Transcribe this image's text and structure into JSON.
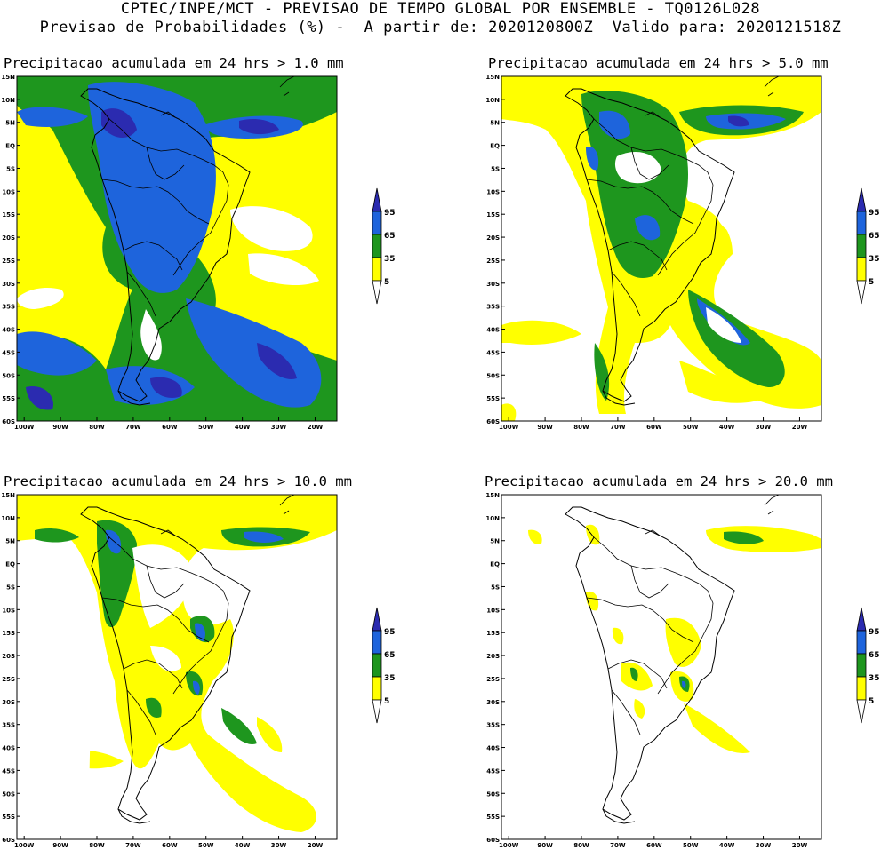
{
  "header": {
    "line1": "CPTEC/INPE/MCT - PREVISAO DE TEMPO GLOBAL POR ENSEMBLE - TQ0126L028",
    "line2": "Previsao de Probabilidades (%) -  A partir de: 2020120800Z  Valido para: 2020121518Z"
  },
  "colors": {
    "yellow": "#ffff00",
    "green": "#1e961e",
    "blue": "#1e64dc",
    "darkblue": "#2b2bb0",
    "white": "#ffffff",
    "coast": "#000000"
  },
  "panels": [
    {
      "id": "p1",
      "title": "Precipitacao acumulada em 24 hrs > 1.0 mm",
      "threshold": "1.0 mm"
    },
    {
      "id": "p2",
      "title": "Precipitacao acumulada em 24 hrs > 5.0 mm",
      "threshold": "5.0 mm"
    },
    {
      "id": "p3",
      "title": "Precipitacao acumulada em 24 hrs > 10.0 mm",
      "threshold": "10.0 mm"
    },
    {
      "id": "p4",
      "title": "Precipitacao acumulada em 24 hrs > 20.0 mm",
      "threshold": "20.0 mm"
    }
  ],
  "axes": {
    "lat_labels": [
      "15N",
      "10N",
      "5N",
      "EQ",
      "5S",
      "10S",
      "15S",
      "20S",
      "25S",
      "30S",
      "35S",
      "40S",
      "45S",
      "50S",
      "55S",
      "60S"
    ],
    "lon_labels": [
      "100W",
      "90W",
      "80W",
      "70W",
      "60W",
      "50W",
      "40W",
      "30W",
      "20W"
    ]
  },
  "legend": {
    "labels": [
      "95",
      "65",
      "35",
      "5"
    ],
    "units": "%"
  }
}
